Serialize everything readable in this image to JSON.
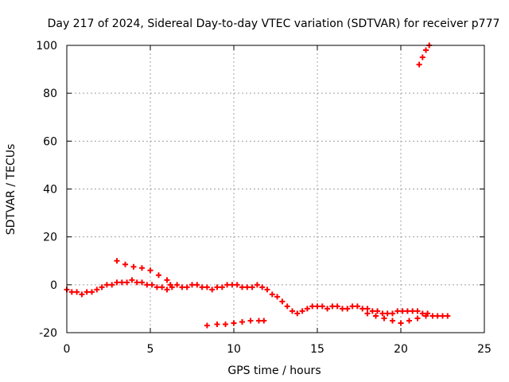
{
  "chart_data": {
    "type": "scatter",
    "title": "Day 217 of 2024, Sidereal Day-to-day VTEC variation (SDTVAR) for receiver p777",
    "xlabel": "GPS time / hours",
    "ylabel": "SDTVAR / TECUs",
    "xlim": [
      0,
      25
    ],
    "ylim": [
      -20,
      100
    ],
    "xticks": [
      0,
      5,
      10,
      15,
      20,
      25
    ],
    "yticks": [
      -20,
      0,
      20,
      40,
      60,
      80,
      100
    ],
    "grid": true,
    "marker": "plus",
    "color": "#ff0000",
    "series": [
      {
        "name": "segment-1",
        "x": [
          0.0,
          0.3,
          0.6,
          0.9,
          1.2,
          1.5,
          1.8,
          2.1,
          2.4,
          2.7,
          3.0,
          3.3,
          3.6,
          3.9,
          4.2,
          4.5,
          4.8,
          5.1,
          5.4,
          5.7,
          6.0,
          6.3,
          6.6,
          6.9,
          7.2,
          7.5,
          7.8,
          8.1,
          8.4,
          8.7,
          9.0,
          9.3,
          9.6,
          9.9,
          10.2,
          10.5,
          10.8,
          11.1,
          11.4,
          11.7,
          12.0,
          12.3,
          12.6,
          12.9,
          13.2,
          13.5,
          13.8,
          14.1,
          14.4,
          14.7,
          15.0,
          15.3,
          15.6,
          15.9,
          16.2,
          16.5,
          16.8,
          17.1,
          17.4,
          17.7,
          18.0,
          18.3,
          18.6,
          18.9,
          19.2,
          19.5,
          19.8,
          20.1,
          20.4,
          20.7,
          21.0,
          21.3,
          21.6,
          21.9,
          22.2,
          22.5,
          22.8
        ],
        "y": [
          -2,
          -3,
          -3,
          -4,
          -3,
          -3,
          -2,
          -1,
          0,
          0,
          1,
          1,
          1,
          2,
          1,
          1,
          0,
          0,
          -1,
          -1,
          -2,
          -1,
          0,
          -1,
          -1,
          0,
          0,
          -1,
          -1,
          -2,
          -1,
          -1,
          0,
          0,
          0,
          -1,
          -1,
          -1,
          0,
          -1,
          -2,
          -4,
          -5,
          -7,
          -9,
          -11,
          -12,
          -11,
          -10,
          -9,
          -9,
          -9,
          -10,
          -9,
          -9,
          -10,
          -10,
          -9,
          -9,
          -10,
          -10,
          -11,
          -11,
          -12,
          -12,
          -12,
          -11,
          -11,
          -11,
          -11,
          -11,
          -12,
          -12,
          -13,
          -13,
          -13,
          -13
        ]
      },
      {
        "name": "segment-2",
        "x": [
          3.0,
          3.5,
          4.0,
          4.5,
          5.0,
          5.5,
          6.0,
          6.2
        ],
        "y": [
          10,
          8.5,
          7.5,
          7,
          6,
          4,
          2,
          0
        ]
      },
      {
        "name": "segment-3",
        "x": [
          8.4,
          9.0,
          9.5,
          10.0,
          10.5,
          11.0,
          11.5,
          11.8
        ],
        "y": [
          -17,
          -16.5,
          -16.5,
          -16,
          -15.5,
          -15,
          -15,
          -15
        ]
      },
      {
        "name": "segment-4",
        "x": [
          18.0,
          18.5,
          19.0,
          19.5,
          20.0,
          20.5,
          21.0,
          21.5
        ],
        "y": [
          -12,
          -13,
          -14,
          -15,
          -16,
          -15,
          -14,
          -13
        ]
      },
      {
        "name": "segment-5",
        "x": [
          21.1,
          21.3,
          21.5,
          21.7
        ],
        "y": [
          92,
          95,
          98,
          100
        ]
      }
    ]
  }
}
